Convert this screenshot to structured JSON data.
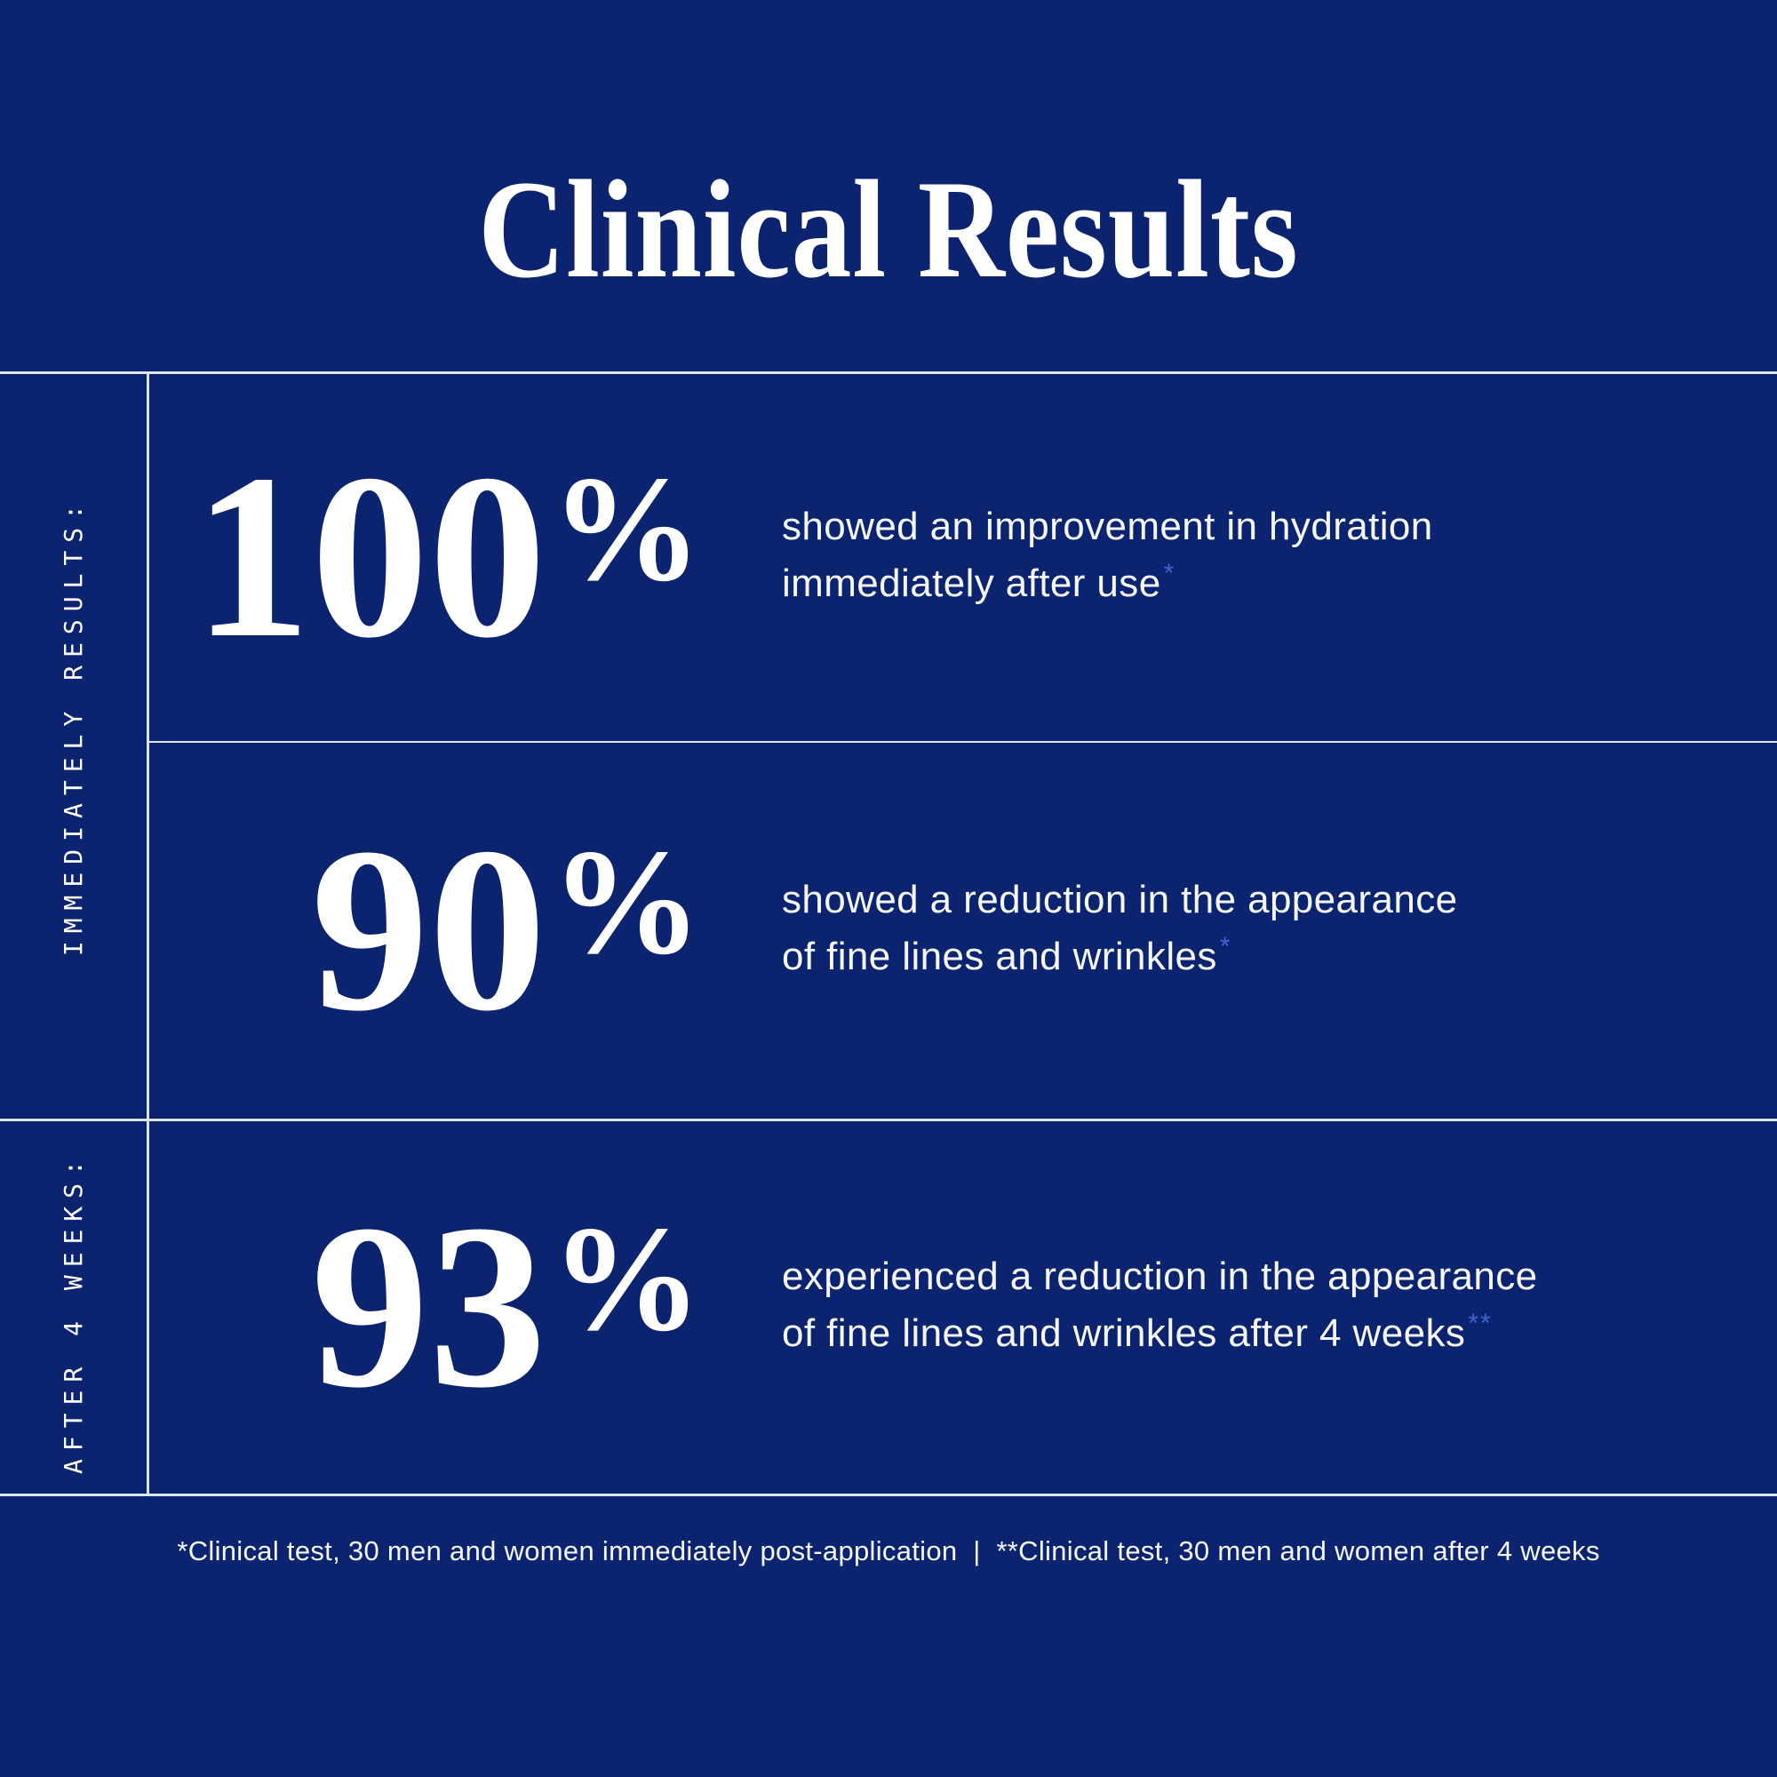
{
  "page": {
    "title": "Clinical Results",
    "colors": {
      "background": "#0C246F",
      "line": "#DCE5F3",
      "text": "#F5F7FB",
      "heading": "#FFFFFF",
      "marker": "#4161D1"
    }
  },
  "sections": [
    {
      "label": "IMMEDIATELY RESULTS:"
    },
    {
      "label": "AFTER 4 WEEKS:"
    }
  ],
  "stats": [
    {
      "value": "100",
      "unit": "%",
      "line1": "showed an improvement in hydration",
      "line2": "immediately after use",
      "marker": "*"
    },
    {
      "value": "90",
      "unit": "%",
      "line1": "showed a reduction in the appearance",
      "line2": "of fine lines and wrinkles",
      "marker": "*"
    },
    {
      "value": "93",
      "unit": "%",
      "line1": "experienced a reduction in the appearance",
      "line2": "of fine lines and wrinkles after 4 weeks",
      "marker": "**"
    }
  ],
  "footer": {
    "text": "*Clinical test, 30 men and women immediately post-application  |  **Clinical test, 30 men and women after 4 weeks"
  }
}
